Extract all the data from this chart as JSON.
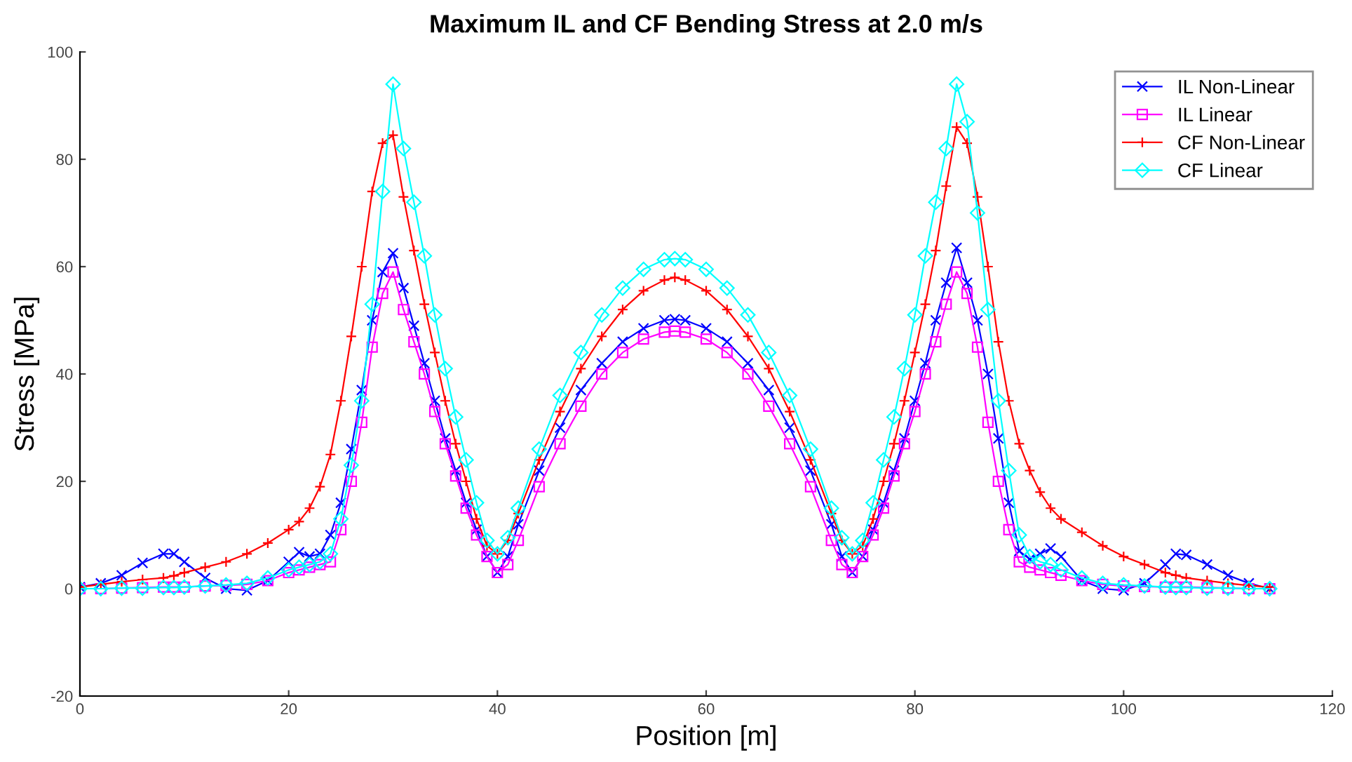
{
  "chart_data": {
    "type": "line",
    "title": "Maximum IL and CF Bending Stress at 2.0 m/s",
    "xlabel": "Position [m]",
    "ylabel": "Stress [MPa]",
    "x": [
      0,
      2,
      4,
      6,
      8,
      9,
      10,
      12,
      14,
      16,
      18,
      20,
      21,
      22,
      23,
      24,
      25,
      26,
      27,
      28,
      29,
      30,
      31,
      32,
      33,
      34,
      35,
      36,
      37,
      38,
      39,
      40,
      41,
      42,
      44,
      46,
      48,
      50,
      52,
      54,
      56,
      57,
      58,
      60,
      62,
      64,
      66,
      68,
      70,
      72,
      73,
      74,
      75,
      76,
      77,
      78,
      79,
      80,
      81,
      82,
      83,
      84,
      85,
      86,
      87,
      88,
      89,
      90,
      91,
      92,
      93,
      94,
      96,
      98,
      100,
      102,
      104,
      105,
      106,
      108,
      110,
      112,
      114
    ],
    "series": [
      {
        "name": "IL Non-Linear",
        "color": "#0000ff",
        "marker": "cross",
        "values": [
          0.3,
          1,
          2.5,
          4.8,
          6.5,
          6.5,
          5,
          2,
          0,
          -0.3,
          1.5,
          5,
          6.8,
          6,
          6.5,
          10,
          16,
          26,
          37,
          50,
          59,
          62.5,
          56,
          49,
          42,
          35,
          28,
          22,
          16,
          11,
          6,
          3,
          6,
          12,
          22,
          30,
          37,
          42,
          46,
          48.5,
          50,
          50.2,
          50,
          48.5,
          46,
          42,
          37,
          30,
          22,
          12,
          6,
          3,
          6,
          11,
          16,
          22,
          28,
          35,
          42,
          50,
          57,
          63.5,
          57,
          50,
          40,
          28,
          16,
          7,
          5.5,
          6.5,
          7.5,
          6,
          1.5,
          0,
          -0.3,
          1,
          4.5,
          6.5,
          6.3,
          4.5,
          2.5,
          1,
          0
        ]
      },
      {
        "name": "IL Linear",
        "color": "#ff00ff",
        "marker": "square",
        "values": [
          0,
          0,
          0.1,
          0.2,
          0.3,
          0.3,
          0.3,
          0.5,
          0.6,
          0.8,
          1.5,
          3,
          3.5,
          4,
          4.5,
          5,
          11,
          20,
          31,
          45,
          55,
          59,
          52,
          46,
          40,
          33,
          27,
          21,
          15,
          10,
          6,
          3,
          4.5,
          9,
          19,
          27,
          34,
          40,
          44,
          46.5,
          47.8,
          48,
          47.8,
          46.5,
          44,
          40,
          34,
          27,
          19,
          9,
          4.5,
          3,
          6,
          10,
          15,
          21,
          27,
          33,
          40,
          46,
          53,
          59,
          55,
          45,
          31,
          20,
          11,
          5,
          4,
          3.5,
          3,
          2.5,
          1.5,
          0.8,
          0.5,
          0.4,
          0.3,
          0.3,
          0.3,
          0.2,
          0.1,
          0,
          0
        ]
      },
      {
        "name": "CF Non-Linear",
        "color": "#ff0000",
        "marker": "plus",
        "values": [
          0.3,
          0.8,
          1.3,
          1.7,
          2,
          2.4,
          3,
          4,
          5,
          6.5,
          8.5,
          11,
          12.5,
          15,
          19,
          25,
          35,
          47,
          60,
          74,
          83,
          84.5,
          73,
          63,
          53,
          44,
          35,
          27,
          20,
          13,
          8,
          6.5,
          9,
          14,
          24,
          33,
          41,
          47,
          52,
          55.5,
          57.5,
          58,
          57.5,
          55.5,
          52,
          47,
          41,
          33,
          24,
          14,
          9,
          6.5,
          8,
          13,
          20,
          27,
          35,
          44,
          53,
          63,
          75,
          86,
          83,
          73,
          60,
          46,
          35,
          27,
          22,
          18,
          15,
          13,
          10.5,
          8,
          6,
          4.5,
          3,
          2.5,
          2,
          1.5,
          1,
          0.6,
          0.3
        ]
      },
      {
        "name": "CF Linear",
        "color": "#00ffff",
        "marker": "diamond",
        "values": [
          0,
          0,
          0.1,
          0.1,
          0.2,
          0.2,
          0.3,
          0.5,
          0.7,
          1,
          2,
          3.5,
          4,
          4.5,
          5,
          6.5,
          13,
          23,
          35,
          53,
          74,
          94,
          82,
          72,
          62,
          51,
          41,
          32,
          24,
          16,
          9,
          6.5,
          9.5,
          15,
          26,
          36,
          44,
          51,
          56,
          59.5,
          61.3,
          61.5,
          61.3,
          59.5,
          56,
          51,
          44,
          36,
          26,
          15,
          9.5,
          6.5,
          9,
          16,
          24,
          32,
          41,
          51,
          62,
          72,
          82,
          94,
          87,
          70,
          52,
          35,
          22,
          10,
          6,
          5,
          4.5,
          3.5,
          2,
          1,
          0.7,
          0.5,
          0.3,
          0.2,
          0.2,
          0.1,
          0.1,
          0,
          0
        ]
      }
    ],
    "xlim": [
      0,
      120
    ],
    "xticks": [
      0,
      20,
      40,
      60,
      80,
      100,
      120
    ],
    "ylim": [
      -20,
      100
    ],
    "yticks": [
      -20,
      0,
      20,
      40,
      60,
      80,
      100
    ],
    "grid": false,
    "legend": "top right",
    "line_style": "solid"
  }
}
